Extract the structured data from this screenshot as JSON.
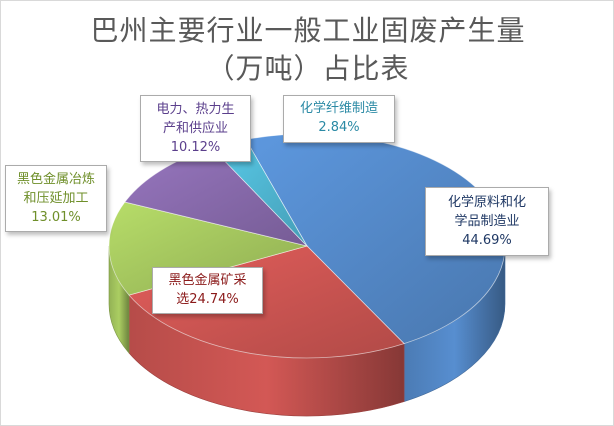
{
  "chart_data": {
    "type": "pie",
    "title_lines": [
      "巴州主要行业一般工业固废产生量",
      "（万吨）占比表"
    ],
    "slices": [
      {
        "label_lines": [
          "化学原料和化",
          "学品制造业"
        ],
        "value_label": "44.69%",
        "value": 44.69,
        "color": "#4f81bd"
      },
      {
        "label_lines": [
          "黑色金属矿采"
        ],
        "value_label": "选24.74%",
        "value": 24.74,
        "color": "#c0504d"
      },
      {
        "label_lines": [
          "黑色金属冶炼",
          "和压延加工"
        ],
        "value_label": "13.01%",
        "value": 13.01,
        "color": "#9bbb59"
      },
      {
        "label_lines": [
          "电力、热力生",
          "产和供应业"
        ],
        "value_label": "10.12%",
        "value": 10.12,
        "color": "#8064a2"
      },
      {
        "label_lines": [
          "化学纤维制造"
        ],
        "value_label": "2.84%",
        "value": 2.84,
        "color": "#4bacc6"
      }
    ]
  }
}
